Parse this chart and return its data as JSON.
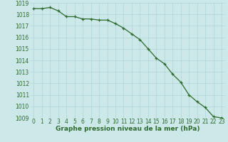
{
  "x": [
    0,
    1,
    2,
    3,
    4,
    5,
    6,
    7,
    8,
    9,
    10,
    11,
    12,
    13,
    14,
    15,
    16,
    17,
    18,
    19,
    20,
    21,
    22,
    23
  ],
  "y": [
    1018.5,
    1018.5,
    1018.6,
    1018.3,
    1017.8,
    1017.8,
    1017.6,
    1017.6,
    1017.5,
    1017.5,
    1017.2,
    1016.8,
    1016.3,
    1015.8,
    1015.0,
    1014.2,
    1013.7,
    1012.8,
    1012.1,
    1011.0,
    1010.4,
    1009.9,
    1009.1,
    1009.0
  ],
  "ylim": [
    1009,
    1019
  ],
  "yticks": [
    1009,
    1010,
    1011,
    1012,
    1013,
    1014,
    1015,
    1016,
    1017,
    1018,
    1019
  ],
  "xticks": [
    0,
    1,
    2,
    3,
    4,
    5,
    6,
    7,
    8,
    9,
    10,
    11,
    12,
    13,
    14,
    15,
    16,
    17,
    18,
    19,
    20,
    21,
    22,
    23
  ],
  "xlabel": "Graphe pression niveau de la mer (hPa)",
  "line_color": "#2d6a2d",
  "marker": "+",
  "bg_color": "#cce8e8",
  "grid_color": "#aed4d4",
  "tick_color": "#2d6a2d",
  "label_color": "#2d6a2d",
  "tick_fontsize": 5.5,
  "xlabel_fontsize": 6.5
}
